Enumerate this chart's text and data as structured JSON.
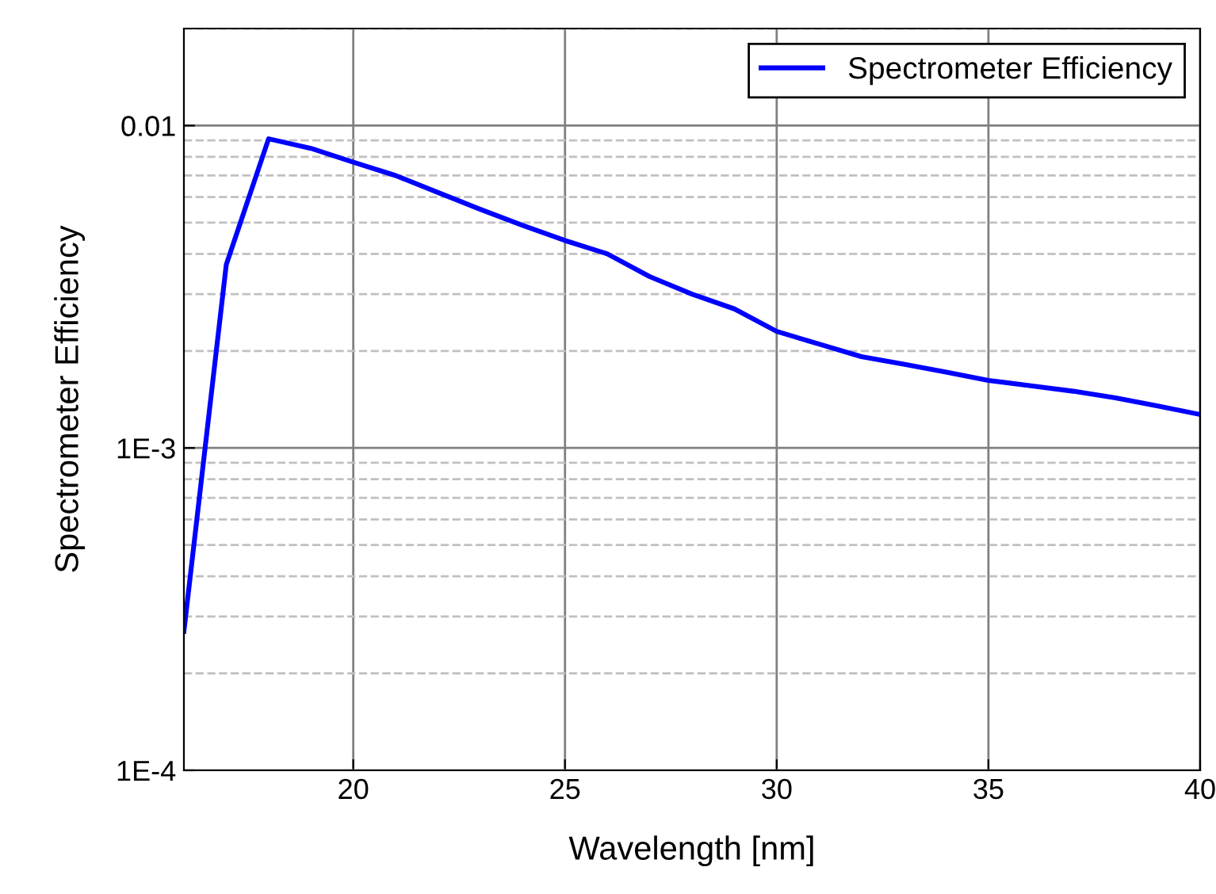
{
  "chart_data": {
    "type": "line",
    "xlabel": "Wavelength [nm]",
    "ylabel": "Spectrometer Efficiency",
    "x": [
      16,
      17,
      18,
      19,
      20,
      21,
      22,
      23,
      24,
      25,
      26,
      27,
      28,
      29,
      30,
      31,
      32,
      33,
      34,
      35,
      36,
      37,
      38,
      39,
      40
    ],
    "series": [
      {
        "name": "Spectrometer Efficiency",
        "color": "#0000ff",
        "values": [
          0.00027,
          0.0037,
          0.0091,
          0.0085,
          0.0077,
          0.007,
          0.0062,
          0.0055,
          0.0049,
          0.0044,
          0.004,
          0.0034,
          0.003,
          0.0027,
          0.0023,
          0.0021,
          0.00192,
          0.00182,
          0.00172,
          0.00162,
          0.00156,
          0.0015,
          0.00143,
          0.00135,
          0.00127
        ]
      }
    ],
    "log": "y",
    "xlim": [
      16,
      40
    ],
    "ylim": [
      0.0001,
      0.02
    ],
    "xticks": [
      20,
      25,
      30,
      35,
      40
    ],
    "yticks": [
      {
        "value": 0.0001,
        "label": "1E-4"
      },
      {
        "value": 0.001,
        "label": "1E-3"
      },
      0.01
    ],
    "grid": true,
    "legend": "top right",
    "marker": "none",
    "line_style": "solid"
  }
}
